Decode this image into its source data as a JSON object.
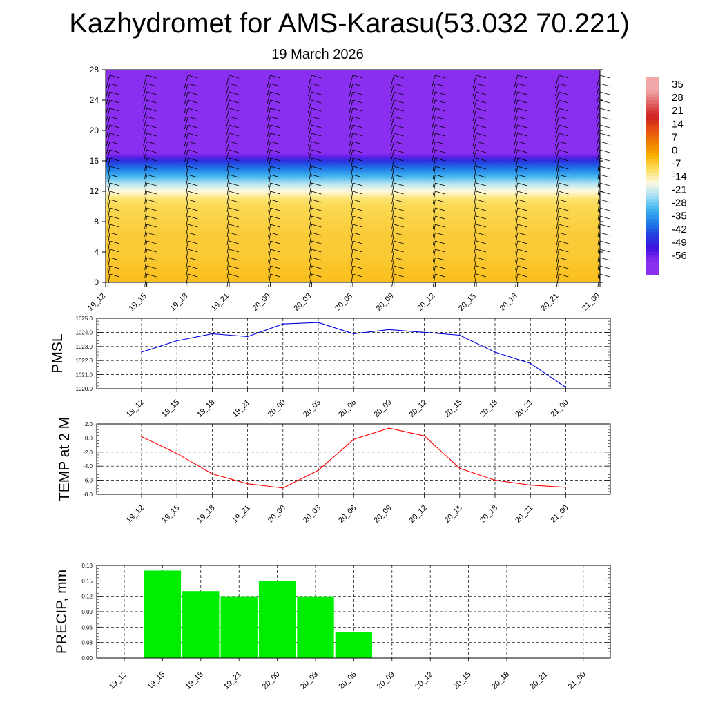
{
  "header": {
    "title": "Kazhydromet for AMS-Karasu(53.032 70.221)",
    "subtitle": "19 March 2026"
  },
  "time_labels": [
    "19_12",
    "19_15",
    "19_18",
    "19_21",
    "20_00",
    "20_03",
    "20_06",
    "20_09",
    "20_12",
    "20_15",
    "20_18",
    "20_21",
    "21_00"
  ],
  "chart_data": [
    {
      "type": "heatmap",
      "description_free": true,
      "x": [
        "19_12",
        "19_15",
        "19_18",
        "19_21",
        "20_00",
        "20_03",
        "20_06",
        "20_09",
        "20_12",
        "20_15",
        "20_18",
        "20_21",
        "21_00"
      ],
      "y_ticks": [
        0,
        4,
        8,
        12,
        16,
        20,
        24,
        28
      ],
      "ylim": [
        0,
        28
      ],
      "colorbar_labels": [
        "35",
        "28",
        "21",
        "14",
        "7",
        "0",
        "-7",
        "-14",
        "-21",
        "-28",
        "-35",
        "-42",
        "-49",
        "-56"
      ],
      "colorbar_values": [
        35,
        28,
        21,
        14,
        7,
        0,
        -7,
        -14,
        -21,
        -28,
        -35,
        -42,
        -49,
        -56
      ],
      "colorbar_colors": [
        "#f2a8a8",
        "#e06060",
        "#d02020",
        "#e85010",
        "#f08000",
        "#f8b000",
        "#fce060",
        "#fffae0",
        "#a8e0f4",
        "#40b4f0",
        "#2080e8",
        "#2040e0",
        "#4010e0",
        "#8a2ef0"
      ],
      "field_levels": [
        0,
        2,
        4,
        6,
        8,
        10,
        11,
        12,
        13,
        14,
        15,
        16,
        16.5,
        17,
        18,
        20,
        24,
        28
      ],
      "field_values": [
        -2,
        -3,
        -4,
        -4,
        -5,
        -6,
        -8,
        -14,
        -20,
        -28,
        -36,
        -44,
        -52,
        -58,
        -60,
        -58,
        -57,
        -56
      ],
      "wind_barbs": "shown"
    },
    {
      "type": "line",
      "ylabel": "PMSL",
      "x": [
        "19_12",
        "19_15",
        "19_18",
        "19_21",
        "20_00",
        "20_03",
        "20_06",
        "20_09",
        "20_12",
        "20_15",
        "20_18",
        "20_21",
        "21_00"
      ],
      "values": [
        1022.6,
        1023.4,
        1023.9,
        1023.7,
        1024.6,
        1024.7,
        1023.9,
        1024.2,
        1024.0,
        1023.8,
        1022.6,
        1021.8,
        1020.1
      ],
      "ylim": [
        1020.0,
        1025.0
      ],
      "y_ticks": [
        1020.0,
        1021.0,
        1022.0,
        1023.0,
        1024.0,
        1025.0
      ],
      "y_tick_labels": [
        "1020.0",
        "1021.0",
        "1022.0",
        "1023.0",
        "1024.0",
        "1025.0"
      ],
      "line_color": "#0000e0",
      "grid": "dashed"
    },
    {
      "type": "line",
      "ylabel": "TEMP at 2 M",
      "x": [
        "19_12",
        "19_15",
        "19_18",
        "19_21",
        "20_00",
        "20_03",
        "20_06",
        "20_09",
        "20_12",
        "20_15",
        "20_18",
        "20_21",
        "21_00"
      ],
      "values": [
        0.2,
        -2.2,
        -5.1,
        -6.5,
        -7.1,
        -4.6,
        -0.2,
        1.4,
        0.3,
        -4.3,
        -6.0,
        -6.7,
        -7.0
      ],
      "ylim": [
        -8.0,
        2.0
      ],
      "y_ticks": [
        -8.0,
        -6.0,
        -4.0,
        -2.0,
        0.0,
        2.0
      ],
      "y_tick_labels": [
        "-8.0",
        "-6.0",
        "-4.0",
        "-2.0",
        "0.0",
        "2.0"
      ],
      "line_color": "#ff0000",
      "grid": "dashed"
    },
    {
      "type": "bar",
      "ylabel": "PRECIP, mm",
      "categories": [
        "19_12",
        "19_15",
        "19_18",
        "19_21",
        "20_00",
        "20_03",
        "20_06",
        "20_09",
        "20_12",
        "20_15",
        "20_18",
        "20_21",
        "21_00"
      ],
      "values": [
        0,
        0.17,
        0.13,
        0.12,
        0.15,
        0.12,
        0.05,
        0,
        0,
        0,
        0,
        0,
        0
      ],
      "ylim": [
        0,
        0.18
      ],
      "y_ticks": [
        0,
        0.03,
        0.06,
        0.09,
        0.12,
        0.15,
        0.18
      ],
      "y_tick_labels": [
        "0.00",
        "0.03",
        "0.06",
        "0.09",
        "0.12",
        "0.15",
        "0.18"
      ],
      "bar_color": "#00ee00",
      "grid": "dashed"
    }
  ]
}
